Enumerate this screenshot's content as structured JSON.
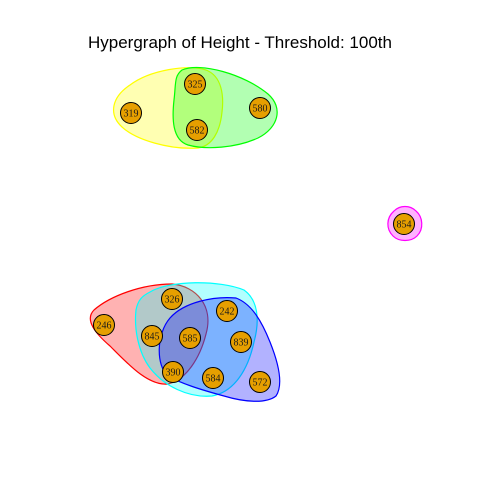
{
  "title": "Hypergraph of Height - Threshold: 100th",
  "node_color": "#E69F00",
  "nodes": [
    {
      "id": "319"
    },
    {
      "id": "325"
    },
    {
      "id": "580"
    },
    {
      "id": "582"
    },
    {
      "id": "854"
    },
    {
      "id": "246"
    },
    {
      "id": "326"
    },
    {
      "id": "845"
    },
    {
      "id": "585"
    },
    {
      "id": "242"
    },
    {
      "id": "839"
    },
    {
      "id": "390"
    },
    {
      "id": "584"
    },
    {
      "id": "572"
    }
  ],
  "hyperedges": [
    {
      "members": [
        "319",
        "325",
        "582"
      ],
      "color": "#FFFF00"
    },
    {
      "members": [
        "325",
        "580",
        "582"
      ],
      "color": "#00FF00"
    },
    {
      "members": [
        "854"
      ],
      "color": "#FF00FF"
    },
    {
      "members": [
        "246",
        "326",
        "845",
        "585",
        "390"
      ],
      "color": "#FF0000"
    },
    {
      "members": [
        "326",
        "845",
        "585",
        "242",
        "839",
        "390",
        "584"
      ],
      "color": "#00FFFF"
    },
    {
      "members": [
        "585",
        "242",
        "839",
        "390",
        "584",
        "572"
      ],
      "color": "#0000FF"
    }
  ]
}
